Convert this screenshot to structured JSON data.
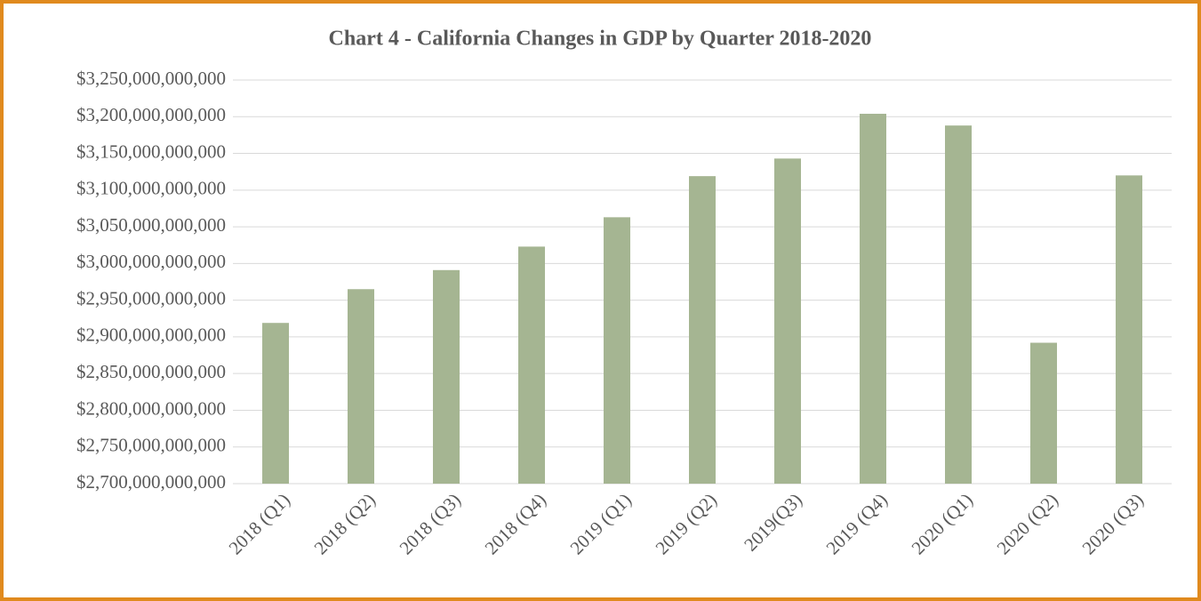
{
  "chart_data": {
    "type": "bar",
    "title": "Chart 4 - California Changes in GDP by Quarter 2018-2020",
    "categories": [
      "2018 (Q1)",
      "2018 (Q2)",
      "2018 (Q3)",
      "2018 (Q4)",
      "2019 (Q1)",
      "2019 (Q2)",
      "2019(Q3)",
      "2019 (Q4)",
      "2020 (Q1)",
      "2020 (Q2)",
      "2020 (Q3)"
    ],
    "values": [
      2919000000000,
      2965000000000,
      2991000000000,
      3023000000000,
      3063000000000,
      3119000000000,
      3143000000000,
      3204000000000,
      3188000000000,
      2892000000000,
      3120000000000
    ],
    "color": "#a5b592",
    "ylim": [
      2700000000000,
      3250000000000
    ],
    "yticks": [
      {
        "value": 2700000000000,
        "label": "$2,700,000,000,000"
      },
      {
        "value": 2750000000000,
        "label": "$2,750,000,000,000"
      },
      {
        "value": 2800000000000,
        "label": "$2,800,000,000,000"
      },
      {
        "value": 2850000000000,
        "label": "$2,850,000,000,000"
      },
      {
        "value": 2900000000000,
        "label": "$2,900,000,000,000"
      },
      {
        "value": 2950000000000,
        "label": "$2,950,000,000,000"
      },
      {
        "value": 3000000000000,
        "label": "$3,000,000,000,000"
      },
      {
        "value": 3050000000000,
        "label": "$3,050,000,000,000"
      },
      {
        "value": 3100000000000,
        "label": "$3,100,000,000,000"
      },
      {
        "value": 3150000000000,
        "label": "$3,150,000,000,000"
      },
      {
        "value": 3200000000000,
        "label": "$3,200,000,000,000"
      },
      {
        "value": 3250000000000,
        "label": "$3,250,000,000,000"
      }
    ],
    "grid": true
  }
}
